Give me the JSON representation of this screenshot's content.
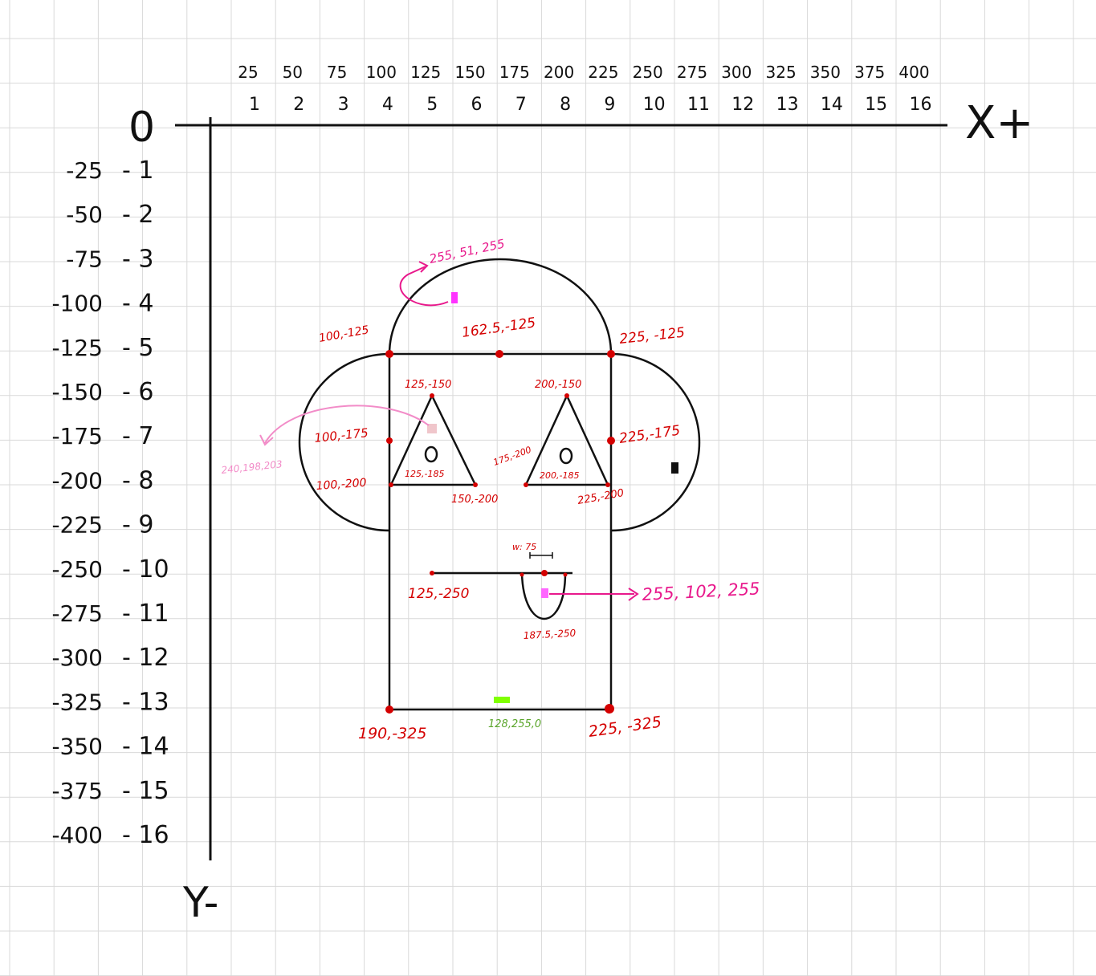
{
  "colors": {
    "grid": "#d9d9d9",
    "ink": "#111111",
    "red": "#d40000",
    "pink": "#e8198c",
    "light_pink": "#f28cc8",
    "green": "#5aa52a"
  },
  "origin_label": "0",
  "x_axis_label": "X+",
  "y_axis_label": "Y-",
  "x_ticks_units": [
    "25",
    "50",
    "75",
    "100",
    "125",
    "150",
    "175",
    "200",
    "225",
    "250",
    "275",
    "300",
    "325",
    "350",
    "375",
    "400"
  ],
  "x_ticks_index": [
    "1",
    "2",
    "3",
    "4",
    "5",
    "6",
    "7",
    "8",
    "9",
    "10",
    "11",
    "12",
    "13",
    "14",
    "15",
    "16"
  ],
  "y_ticks_units": [
    "-25",
    "-50",
    "-75",
    "-100",
    "-125",
    "-150",
    "-175",
    "-200",
    "-225",
    "-250",
    "-275",
    "-300",
    "-325",
    "-350",
    "-375",
    "-400"
  ],
  "y_ticks_index": [
    "1",
    "2",
    "3",
    "4",
    "5",
    "6",
    "7",
    "8",
    "9",
    "10",
    "11",
    "12",
    "13",
    "14",
    "15",
    "16"
  ],
  "annotations": {
    "top_color": "255, 51, 255",
    "top_left": "100,-125",
    "top_mid": "162.5,-125",
    "top_right": "225, -125",
    "left_eye_top": "125,-150",
    "right_eye_top": "200,-150",
    "left_side": "100,-175",
    "right_side": "225,-175",
    "left_eye_color": "240,198,203",
    "left_eye_center": "125,-185",
    "right_eye_center": "200,-185",
    "left_eye_bl": "100,-200",
    "left_eye_br": "150,-200",
    "right_eye_bl": "175,-200",
    "right_eye_br": "225,-200",
    "width_note": "w: 75",
    "mouth_left": "125,-250",
    "mouth_center": "187.5,-250",
    "mouth_color": "255, 102, 255",
    "body_color": "128,255,0",
    "bottom_left": "190,-325",
    "bottom_right": "225, -325"
  }
}
